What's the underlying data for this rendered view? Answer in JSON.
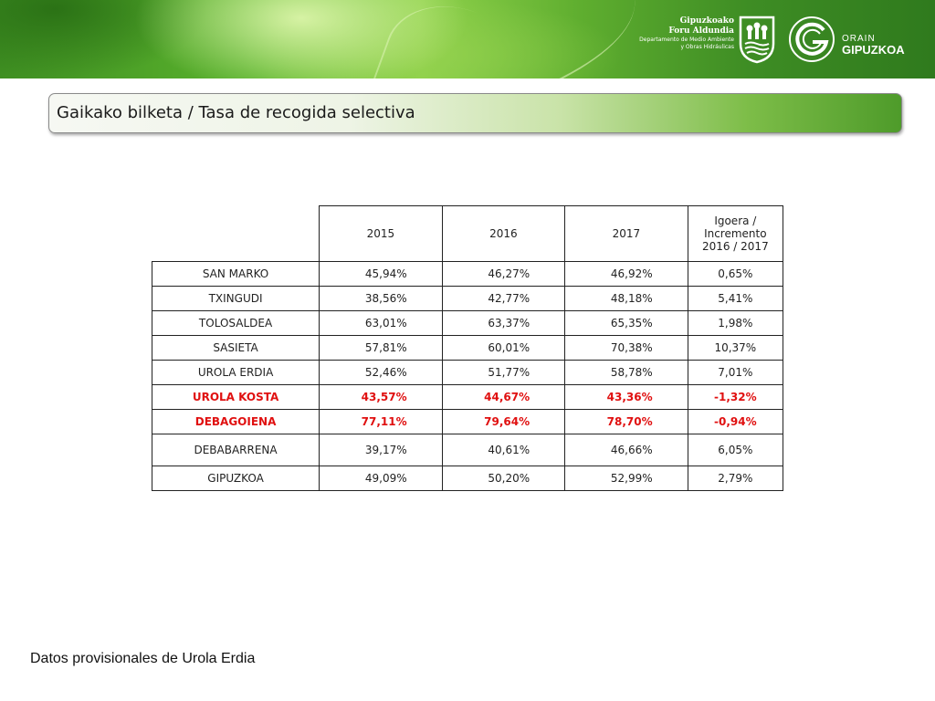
{
  "header": {
    "org_line1": "Gipuzkoako",
    "org_line2": "Foru Aldundia",
    "org_line3": "Departamento de Medio Ambiente",
    "org_line4": "y Obras Hidráulicas",
    "brand_small": "ORAIN",
    "brand_big": "GIPUZKOA"
  },
  "title": "Gaikako bilketa / Tasa de recogida selectiva",
  "table": {
    "columns": [
      "2015",
      "2016",
      "2017"
    ],
    "increment_header": [
      "Igoera /",
      "Incremento",
      "2016 / 2017"
    ],
    "rows": [
      {
        "name": "SAN MARKO",
        "v2015": "45,94%",
        "v2016": "46,27%",
        "v2017": "46,92%",
        "inc": "0,65%"
      },
      {
        "name": "TXINGUDI",
        "v2015": "38,56%",
        "v2016": "42,77%",
        "v2017": "48,18%",
        "inc": "5,41%"
      },
      {
        "name": "TOLOSALDEA",
        "v2015": "63,01%",
        "v2016": "63,37%",
        "v2017": "65,35%",
        "inc": "1,98%"
      },
      {
        "name": "SASIETA",
        "v2015": "57,81%",
        "v2016": "60,01%",
        "v2017": "70,38%",
        "inc": "10,37%"
      },
      {
        "name": "UROLA ERDIA",
        "v2015": "52,46%",
        "v2016": "51,77%",
        "v2017": "58,78%",
        "inc": "7,01%"
      },
      {
        "name": "UROLA KOSTA",
        "v2015": "43,57%",
        "v2016": "44,67%",
        "v2017": "43,36%",
        "inc": "-1,32%"
      },
      {
        "name": "DEBAGOIENA",
        "v2015": "77,11%",
        "v2016": "79,64%",
        "v2017": "78,70%",
        "inc": "-0,94%"
      },
      {
        "name": "DEBABARRENA",
        "v2015": "39,17%",
        "v2016": "40,61%",
        "v2017": "46,66%",
        "inc": "6,05%"
      },
      {
        "name": "GIPUZKOA",
        "v2015": "49,09%",
        "v2016": "50,20%",
        "v2017": "52,99%",
        "inc": "2,79%"
      }
    ],
    "highlight_color": "#e01010"
  },
  "footnote": "Datos provisionales de Urola Erdia"
}
